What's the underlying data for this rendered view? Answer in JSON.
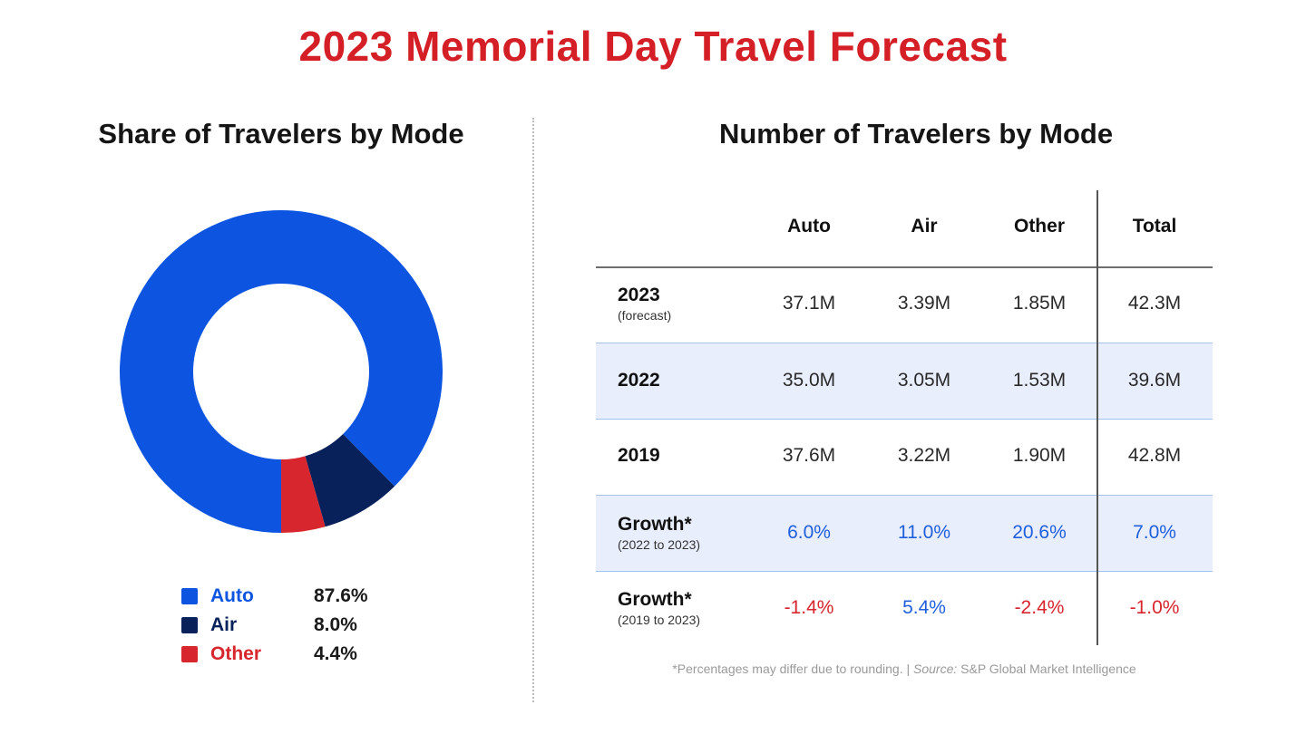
{
  "title": "2023 Memorial Day Travel Forecast",
  "colors": {
    "title": "#d41f27",
    "auto": "#0d55e0",
    "air": "#08215a",
    "other": "#d7262d",
    "growth_positive": "#1f5fdc",
    "growth_negative": "#d7262d",
    "row_shade": "#e8eefb"
  },
  "left": {
    "subtitle": "Share of Travelers by Mode"
  },
  "right": {
    "subtitle": "Number of Travelers by Mode",
    "footnote_pre": "*Percentages may differ due to rounding. | ",
    "footnote_source_label": "Source:",
    "footnote_post": " S&P Global Market Intelligence"
  },
  "chart_data": [
    {
      "type": "pie",
      "title": "Share of Travelers by Mode",
      "donut": true,
      "labels": [
        "Auto",
        "Air",
        "Other"
      ],
      "values": [
        87.6,
        8.0,
        4.4
      ],
      "value_labels": [
        "87.6%",
        "8.0%",
        "4.4%"
      ],
      "colors": [
        "#0d55e0",
        "#08215a",
        "#d7262d"
      ],
      "legend": "bottom"
    },
    {
      "type": "table",
      "title": "Number of Travelers by Mode",
      "columns": [
        "Auto",
        "Air",
        "Other",
        "Total"
      ],
      "rows": [
        {
          "label": "2023",
          "sublabel": "(forecast)",
          "cells": [
            "37.1M",
            "3.39M",
            "1.85M",
            "42.3M"
          ],
          "shaded": false
        },
        {
          "label": "2022",
          "sublabel": "",
          "cells": [
            "35.0M",
            "3.05M",
            "1.53M",
            "39.6M"
          ],
          "shaded": true
        },
        {
          "label": "2019",
          "sublabel": "",
          "cells": [
            "37.6M",
            "3.22M",
            "1.90M",
            "42.8M"
          ],
          "shaded": false
        },
        {
          "label": "Growth*",
          "sublabel": "(2022 to 2023)",
          "cells": [
            "6.0%",
            "11.0%",
            "20.6%",
            "7.0%"
          ],
          "shaded": true
        },
        {
          "label": "Growth*",
          "sublabel": "(2019 to 2023)",
          "cells": [
            "-1.4%",
            "5.4%",
            "-2.4%",
            "-1.0%"
          ],
          "shaded": false
        }
      ]
    }
  ]
}
